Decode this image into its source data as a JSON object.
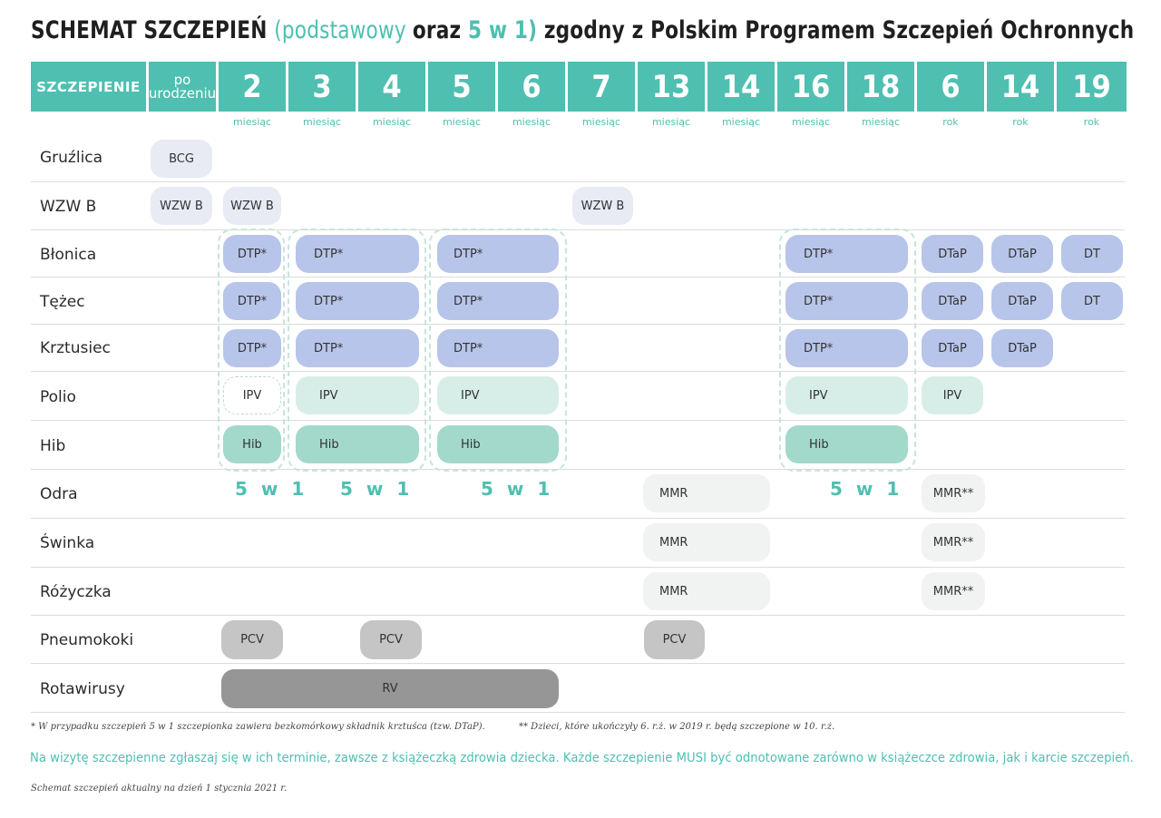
{
  "title": {
    "part1": "SCHEMAT SZCZEPIEŃ ",
    "part2": "(podstawowy ",
    "part3": "oraz ",
    "part4": "5 w 1) ",
    "part5": "zgodny z Polskim Programem Szczepień Ochronnych"
  },
  "header": {
    "first": "SZCZEPIENIE",
    "po_line1": "po",
    "po_line2": "urodzeniu",
    "cols": [
      {
        "num": "2",
        "unit": "miesiąc"
      },
      {
        "num": "3",
        "unit": "miesiąc"
      },
      {
        "num": "4",
        "unit": "miesiąc"
      },
      {
        "num": "5",
        "unit": "miesiąc"
      },
      {
        "num": "6",
        "unit": "miesiąc"
      },
      {
        "num": "7",
        "unit": "miesiąc"
      },
      {
        "num": "13",
        "unit": "miesiąc"
      },
      {
        "num": "14",
        "unit": "miesiąc"
      },
      {
        "num": "16",
        "unit": "miesiąc"
      },
      {
        "num": "18",
        "unit": "miesiąc"
      },
      {
        "num": "6",
        "unit": "rok"
      },
      {
        "num": "14",
        "unit": "rok"
      },
      {
        "num": "19",
        "unit": "rok"
      }
    ]
  },
  "rows": [
    "Gruźlica",
    "WZW B",
    "Błonica",
    "Tężec",
    "Krztusiec",
    "Polio",
    "Hib",
    "Odra",
    "Świnka",
    "Różyczka",
    "Pneumokoki",
    "Rotawirusy"
  ],
  "vaccines": {
    "bcg": "BCG",
    "wzwb": "WZW B",
    "dtp": "DTP*",
    "dtap": "DTaP",
    "dt": "DT",
    "ipv": "IPV",
    "hib": "Hib",
    "mmr": "MMR",
    "mmr2": "MMR**",
    "pcv": "PCV",
    "rv": "RV"
  },
  "five_in_one": "5 w 1",
  "footnotes": {
    "note1": "* W przypadku szczepień 5 w 1 szczepionka zawiera bezkomórkowy składnik krztuśca (tzw. DTaP).",
    "note2": "** Dzieci, które ukończyły 6. r.ż. w 2019 r. będą szczepione w 10. r.ż.",
    "notice": "Na wizytę szczepienne zgłaszaj się w ich terminie, zawsze z książeczką zdrowia dziecka. Każde szczepienie MUSI być odnotowane zarówno w książeczce zdrowia, jak i karcie szczepień.",
    "date": "Schemat szczepień aktualny na dzień 1 stycznia 2021 r."
  },
  "colors": {
    "accent": "#4fbfb1",
    "dtp": "#b8c5ea",
    "ipv": "#d7eee8",
    "hib": "#a3d9cb",
    "pcv": "#c5c5c5",
    "rv": "#969696"
  }
}
